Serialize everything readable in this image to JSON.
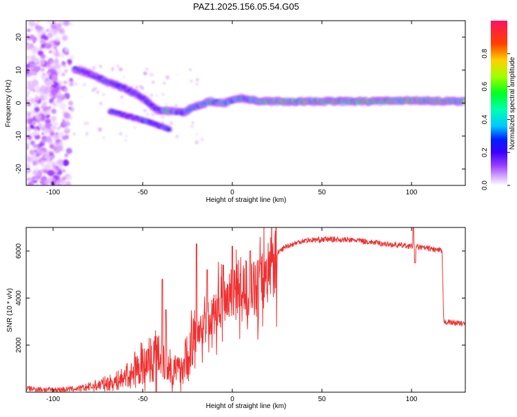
{
  "title": "PAZ1.2025.156.05.54.G05",
  "chart_data": [
    {
      "type": "heatmap",
      "title": "PAZ1.2025.156.05.54.G05",
      "xlabel": "Height of straight line (km)",
      "ylabel": "Frequency (Hz)",
      "xlim": [
        -115,
        130
      ],
      "ylim": [
        -25,
        25
      ],
      "xticks": [
        -100,
        -50,
        0,
        50,
        100
      ],
      "yticks": [
        -20,
        -10,
        0,
        10,
        20
      ],
      "colorbar": {
        "label": "Normalized spectral amplitude",
        "range": [
          0,
          1
        ],
        "ticks": [
          0.0,
          0.2,
          0.4,
          0.6,
          0.8
        ],
        "colormap": [
          "#ffffff",
          "#c060ff",
          "#7a00ff",
          "#0000ff",
          "#00d8ff",
          "#00ff40",
          "#d0ff00",
          "#ffb000",
          "#ff2020",
          "#ff1080"
        ]
      },
      "ridge": {
        "description_points": [
          {
            "x": -88,
            "y": 10.5
          },
          {
            "x": -80,
            "y": 9.0
          },
          {
            "x": -70,
            "y": 6.5
          },
          {
            "x": -60,
            "y": 4.5
          },
          {
            "x": -50,
            "y": 1.5
          },
          {
            "x": -42,
            "y": -2.0
          },
          {
            "x": -35,
            "y": -2.5
          },
          {
            "x": -28,
            "y": -3.0
          },
          {
            "x": -20,
            "y": -1.0
          },
          {
            "x": -12,
            "y": 0.5
          },
          {
            "x": -5,
            "y": 0.0
          },
          {
            "x": 5,
            "y": 1.5
          },
          {
            "x": 15,
            "y": 0.5
          },
          {
            "x": 40,
            "y": 0.5
          },
          {
            "x": 80,
            "y": 0.5
          },
          {
            "x": 100,
            "y": 0.8
          },
          {
            "x": 130,
            "y": 0.5
          }
        ],
        "secondary_branch": [
          {
            "x": -68,
            "y": -2.5
          },
          {
            "x": -58,
            "y": -4.0
          },
          {
            "x": -48,
            "y": -5.5
          },
          {
            "x": -40,
            "y": -7.0
          },
          {
            "x": -35,
            "y": -8.0
          }
        ]
      },
      "noise_region": {
        "x_from": -115,
        "x_to": -88
      }
    },
    {
      "type": "line",
      "xlabel": "Height of straight line (km)",
      "ylabel": "SNR (10 * v/v)",
      "xlim": [
        -115,
        130
      ],
      "ylim": [
        0,
        7000
      ],
      "xticks": [
        -100,
        -50,
        0,
        50,
        100
      ],
      "yticks": [
        2000,
        4000,
        6000
      ],
      "color": "#f03030",
      "envelope": [
        {
          "x": -115,
          "y": 150
        },
        {
          "x": -100,
          "y": 100
        },
        {
          "x": -85,
          "y": 150
        },
        {
          "x": -75,
          "y": 300
        },
        {
          "x": -65,
          "y": 450
        },
        {
          "x": -55,
          "y": 800
        },
        {
          "x": -48,
          "y": 1200
        },
        {
          "x": -40,
          "y": 1800
        },
        {
          "x": -35,
          "y": 1000
        },
        {
          "x": -30,
          "y": 900
        },
        {
          "x": -25,
          "y": 1500
        },
        {
          "x": -18,
          "y": 2600
        },
        {
          "x": -10,
          "y": 3300
        },
        {
          "x": -5,
          "y": 3900
        },
        {
          "x": 0,
          "y": 4300
        },
        {
          "x": 5,
          "y": 4500
        },
        {
          "x": 10,
          "y": 4300
        },
        {
          "x": 15,
          "y": 4500
        },
        {
          "x": 20,
          "y": 5200
        },
        {
          "x": 25,
          "y": 5900
        },
        {
          "x": 30,
          "y": 6200
        },
        {
          "x": 40,
          "y": 6450
        },
        {
          "x": 55,
          "y": 6500
        },
        {
          "x": 70,
          "y": 6450
        },
        {
          "x": 85,
          "y": 6300
        },
        {
          "x": 100,
          "y": 6200
        },
        {
          "x": 110,
          "y": 6100
        },
        {
          "x": 117,
          "y": 6000
        },
        {
          "x": 118,
          "y": 3000
        },
        {
          "x": 130,
          "y": 2900
        }
      ],
      "spikes": [
        {
          "x": -39,
          "y": 4800
        },
        {
          "x": -37,
          "y": 3500
        },
        {
          "x": -20,
          "y": 6300
        },
        {
          "x": -14,
          "y": 5200
        },
        {
          "x": -5,
          "y": 5400
        },
        {
          "x": 0,
          "y": 6200
        },
        {
          "x": 10,
          "y": 6000
        },
        {
          "x": 101,
          "y": 7000
        },
        {
          "x": 102,
          "y": 5500
        }
      ]
    }
  ]
}
